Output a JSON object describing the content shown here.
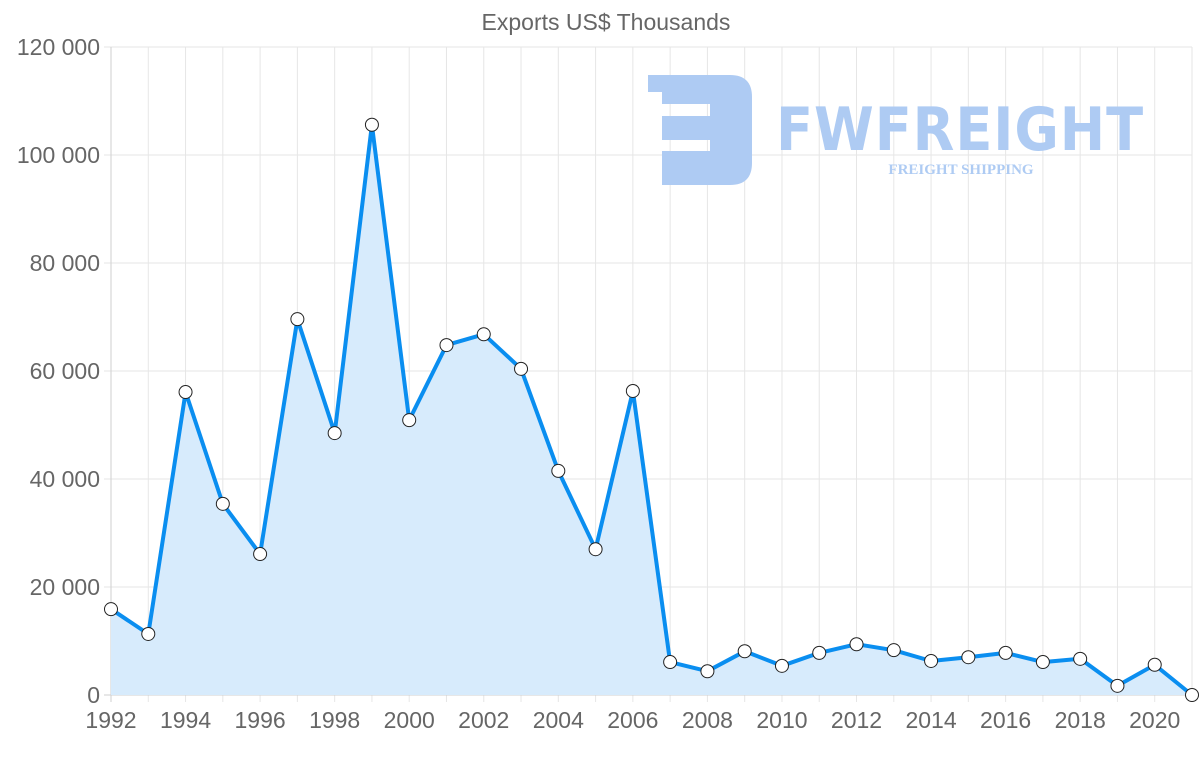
{
  "chart_data": {
    "type": "area",
    "title": "Exports US$ Thousands",
    "xlabel": "",
    "ylabel": "",
    "ylim": [
      0,
      120000
    ],
    "grid": true,
    "legend": null,
    "y_ticks": [
      "0",
      "20 000",
      "40 000",
      "60 000",
      "80 000",
      "100 000",
      "120 000"
    ],
    "y_tick_values": [
      0,
      20000,
      40000,
      60000,
      80000,
      100000,
      120000
    ],
    "x_tick_labels": [
      "1992",
      "1994",
      "1996",
      "1998",
      "2000",
      "2002",
      "2004",
      "2006",
      "2008",
      "2010",
      "2012",
      "2014",
      "2016",
      "2018",
      "2020"
    ],
    "categories": [
      "1992",
      "1993",
      "1994",
      "1995",
      "1996",
      "1997",
      "1998",
      "1999",
      "2000",
      "2001",
      "2002",
      "2003",
      "2004",
      "2005",
      "2006",
      "2007",
      "2008",
      "2009",
      "2010",
      "2011",
      "2012",
      "2013",
      "2014",
      "2015",
      "2016",
      "2017",
      "2018",
      "2019",
      "2020",
      "2021"
    ],
    "series": [
      {
        "name": "Exports",
        "values": [
          15900,
          11300,
          56100,
          35400,
          26100,
          69600,
          48500,
          105600,
          50900,
          64800,
          66800,
          60400,
          41500,
          27000,
          56300,
          6100,
          4400,
          8100,
          5400,
          7800,
          9400,
          8300,
          6300,
          7000,
          7800,
          6100,
          6700,
          1700,
          5600,
          0
        ]
      }
    ],
    "colors": {
      "line": "#0a8ef0",
      "fill": "#d7ebfc",
      "grid": "#e6e6e6",
      "axis_text": "#666666",
      "point_fill": "#ffffff",
      "point_stroke": "#222222"
    }
  },
  "watermark": {
    "brand": "FWFREIGHT",
    "tagline": "FREIGHT SHIPPING",
    "color": "#aecbf3"
  }
}
